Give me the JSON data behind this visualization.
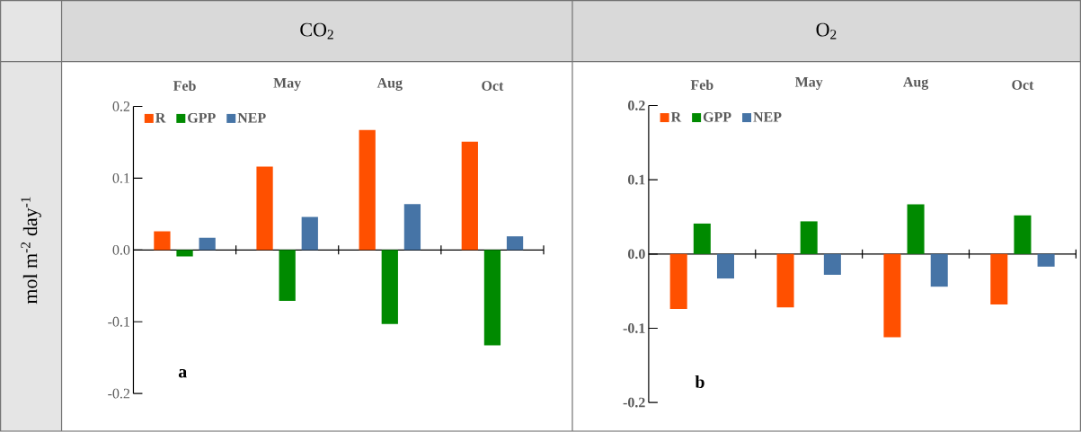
{
  "chart_data": [
    {
      "type": "bar",
      "title": "CO$_{2}$",
      "ylabel": "mol m$^{-2}$ day$^{-1}$",
      "categories": [
        "Feb",
        "May",
        "Aug",
        "Oct"
      ],
      "series": [
        {
          "name": "R",
          "color": "#ff5000",
          "values": [
            0.026,
            0.116,
            0.167,
            0.151
          ]
        },
        {
          "name": "GPP",
          "color": "#008a00",
          "values": [
            -0.009,
            -0.071,
            -0.103,
            -0.133
          ]
        },
        {
          "name": "NEP",
          "color": "#4674a6",
          "values": [
            0.017,
            0.046,
            0.064,
            0.019
          ]
        }
      ],
      "ylim": [
        -0.2,
        0.2
      ],
      "yticks": [
        -0.2,
        -0.1,
        {
          "value": 0,
          "label": "0.0"
        },
        0.1,
        0.2
      ],
      "legend": "top left",
      "annotations": [
        "a"
      ]
    },
    {
      "type": "bar",
      "title": "O$_{2}$",
      "categories": [
        "Feb",
        "May",
        "Aug",
        "Oct"
      ],
      "series": [
        {
          "name": "R",
          "color": "#ff5000",
          "values": [
            -0.074,
            -0.072,
            -0.112,
            -0.068
          ]
        },
        {
          "name": "GPP",
          "color": "#008a00",
          "values": [
            0.041,
            0.044,
            0.067,
            0.052
          ]
        },
        {
          "name": "NEP",
          "color": "#4674a6",
          "values": [
            -0.033,
            -0.028,
            -0.044,
            -0.017
          ]
        }
      ],
      "ylim": [
        -0.2,
        0.2
      ],
      "yticks": [
        -0.2,
        -0.1,
        {
          "value": 0,
          "label": "0.0"
        },
        0.1,
        0.2
      ],
      "legend": "top left",
      "annotations": [
        "b"
      ]
    }
  ]
}
